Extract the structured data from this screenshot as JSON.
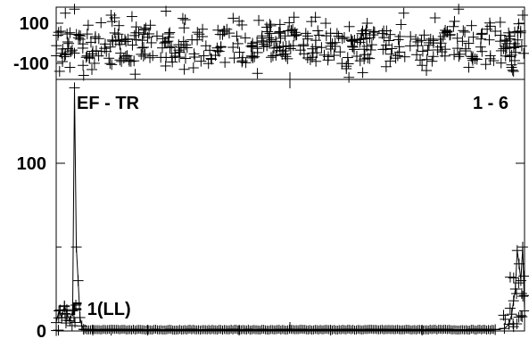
{
  "chart_data": [
    {
      "type": "scatter",
      "panel": "phase",
      "ylim": [
        -180,
        180
      ],
      "xlim": [
        0,
        512
      ],
      "y_ticks": [
        100,
        -100
      ],
      "y_tick_labels": [
        "100",
        "-100"
      ],
      "marker": "plus",
      "description_of_values": "phase values scattered across full range, densest around 0",
      "sample_points": [
        [
          5,
          60
        ],
        [
          10,
          150
        ],
        [
          15,
          -120
        ],
        [
          20,
          170
        ],
        [
          25,
          40
        ],
        [
          30,
          -160
        ],
        [
          35,
          90
        ],
        [
          40,
          -40
        ],
        [
          60,
          140
        ],
        [
          80,
          -90
        ],
        [
          100,
          30
        ],
        [
          120,
          160
        ],
        [
          140,
          -130
        ],
        [
          160,
          70
        ],
        [
          180,
          -20
        ],
        [
          200,
          110
        ],
        [
          220,
          -150
        ],
        [
          240,
          10
        ],
        [
          260,
          130
        ],
        [
          280,
          -70
        ],
        [
          300,
          50
        ],
        [
          320,
          -170
        ],
        [
          340,
          100
        ],
        [
          360,
          -30
        ],
        [
          380,
          150
        ],
        [
          400,
          -110
        ],
        [
          420,
          20
        ],
        [
          440,
          170
        ],
        [
          460,
          -80
        ],
        [
          480,
          60
        ],
        [
          500,
          -140
        ],
        [
          510,
          140
        ]
      ]
    },
    {
      "type": "line",
      "panel": "amplitude",
      "ylim": [
        0,
        150
      ],
      "xlim": [
        0,
        512
      ],
      "y_ticks": [
        0,
        100
      ],
      "y_tick_labels": [
        "0",
        "100"
      ],
      "marker": "plus",
      "x": [
        0,
        3,
        6,
        9,
        12,
        15,
        18,
        20,
        22,
        24,
        26,
        28,
        30,
        40,
        60,
        100,
        200,
        300,
        400,
        480,
        490,
        495,
        498,
        500,
        502,
        504,
        506,
        508,
        510,
        512
      ],
      "y": [
        5,
        12,
        8,
        15,
        10,
        6,
        12,
        145,
        50,
        30,
        8,
        3,
        1,
        0.5,
        0.5,
        0.5,
        0.5,
        0.5,
        0.5,
        0.8,
        1.5,
        4,
        10,
        18,
        25,
        48,
        40,
        30,
        50,
        12
      ]
    }
  ],
  "annotations": {
    "top_left": "EF - TR",
    "top_right": "1 - 6",
    "bottom_left": "F 1(LL)"
  }
}
